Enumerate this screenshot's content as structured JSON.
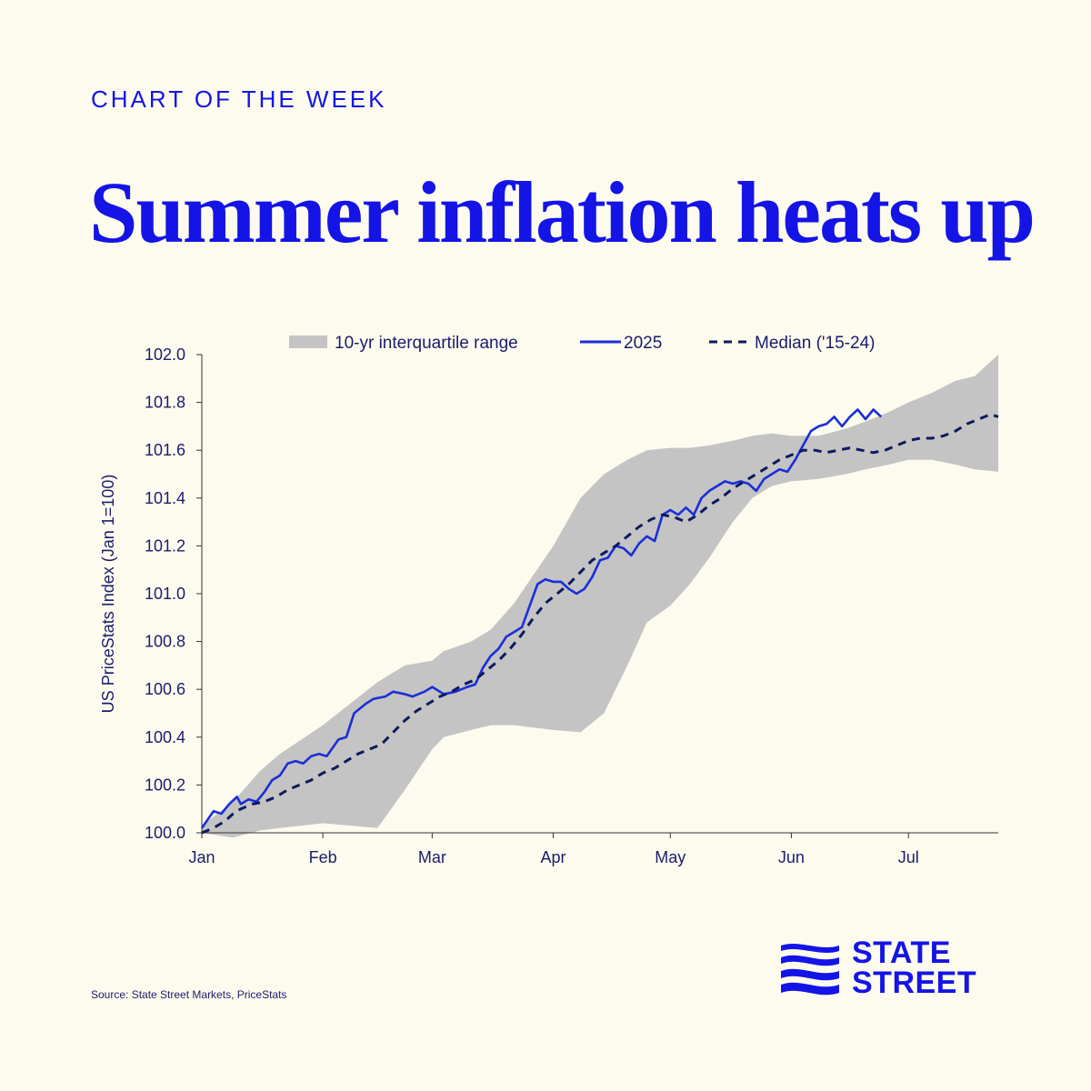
{
  "header": {
    "eyebrow": "CHART OF THE WEEK",
    "title": "Summer inflation heats up"
  },
  "footer": {
    "source": "Source: State Street Markets, PriceStats"
  },
  "brand": {
    "line1": "STATE",
    "line2": "STREET",
    "color": "#1414e6"
  },
  "chart_data": {
    "type": "line",
    "ylabel": "US PriceStats Index (Jan 1=100)",
    "xlabel": "",
    "ylim": [
      100.0,
      102.0
    ],
    "yticks": [
      100.0,
      100.2,
      100.4,
      100.6,
      100.8,
      101.0,
      101.2,
      101.4,
      101.6,
      101.8,
      102.0
    ],
    "ytick_labels": [
      "100.0",
      "100.2",
      "100.4",
      "100.6",
      "100.8",
      "101.0",
      "101.2",
      "101.4",
      "101.6",
      "101.8",
      "102.0"
    ],
    "xlim": [
      0,
      204
    ],
    "month_ticks": [
      {
        "label": "Jan",
        "day": 0
      },
      {
        "label": "Feb",
        "day": 31
      },
      {
        "label": "Mar",
        "day": 59
      },
      {
        "label": "Apr",
        "day": 90
      },
      {
        "label": "May",
        "day": 120
      },
      {
        "label": "Jun",
        "day": 151
      },
      {
        "label": "Jul",
        "day": 181
      }
    ],
    "grid": false,
    "legend_position": "top",
    "band": {
      "name": "10-yr interquartile range",
      "color": "#c4c4c4",
      "x": [
        0,
        8,
        15,
        20,
        31,
        45,
        52,
        59,
        62,
        69,
        74,
        80,
        90,
        97,
        103,
        109,
        114,
        120,
        125,
        130,
        136,
        141,
        146,
        151,
        158,
        165,
        170,
        176,
        181,
        187,
        193,
        198,
        204
      ],
      "upper": [
        100.03,
        100.13,
        100.26,
        100.33,
        100.45,
        100.63,
        100.7,
        100.72,
        100.76,
        100.8,
        100.85,
        100.96,
        101.2,
        101.4,
        101.5,
        101.56,
        101.6,
        101.61,
        101.61,
        101.62,
        101.64,
        101.66,
        101.67,
        101.66,
        101.66,
        101.69,
        101.72,
        101.76,
        101.8,
        101.84,
        101.89,
        101.91,
        102.0
      ],
      "lower": [
        100.0,
        99.98,
        100.01,
        100.02,
        100.04,
        100.02,
        100.18,
        100.35,
        100.4,
        100.43,
        100.45,
        100.45,
        100.43,
        100.42,
        100.5,
        100.7,
        100.88,
        100.95,
        101.04,
        101.15,
        101.3,
        101.4,
        101.45,
        101.47,
        101.48,
        101.5,
        101.52,
        101.54,
        101.56,
        101.56,
        101.54,
        101.52,
        101.51
      ]
    },
    "series": [
      {
        "name": "2025",
        "color": "#1a2ed8",
        "style": "solid",
        "x": [
          0,
          3,
          5,
          7,
          9,
          10,
          12,
          14,
          16,
          18,
          20,
          22,
          24,
          26,
          28,
          30,
          32,
          35,
          37,
          39,
          42,
          44,
          47,
          49,
          52,
          54,
          57,
          59,
          62,
          65,
          68,
          70,
          72,
          74,
          76,
          78,
          80,
          82,
          84,
          86,
          88,
          90,
          92,
          94,
          96,
          98,
          100,
          102,
          104,
          106,
          108,
          110,
          112,
          114,
          116,
          118,
          120,
          122,
          124,
          126,
          128,
          130,
          132,
          134,
          136,
          138,
          140,
          142,
          144,
          146,
          148,
          150,
          152,
          154,
          156,
          157,
          158,
          160,
          162,
          164,
          166,
          168,
          170,
          172,
          174
        ],
        "values": [
          100.02,
          100.09,
          100.08,
          100.12,
          100.15,
          100.12,
          100.14,
          100.13,
          100.17,
          100.22,
          100.24,
          100.29,
          100.3,
          100.29,
          100.32,
          100.33,
          100.32,
          100.39,
          100.4,
          100.5,
          100.54,
          100.56,
          100.57,
          100.59,
          100.58,
          100.57,
          100.59,
          100.61,
          100.58,
          100.59,
          100.61,
          100.62,
          100.69,
          100.74,
          100.77,
          100.82,
          100.84,
          100.86,
          100.95,
          101.04,
          101.06,
          101.05,
          101.05,
          101.02,
          101.0,
          101.02,
          101.07,
          101.14,
          101.15,
          101.2,
          101.19,
          101.16,
          101.21,
          101.24,
          101.22,
          101.33,
          101.35,
          101.33,
          101.36,
          101.33,
          101.4,
          101.43,
          101.45,
          101.47,
          101.46,
          101.47,
          101.46,
          101.43,
          101.48,
          101.5,
          101.52,
          101.51,
          101.56,
          101.62,
          101.68,
          101.69,
          101.7,
          101.71,
          101.74,
          101.7,
          101.74,
          101.77,
          101.73,
          101.77,
          101.74
        ]
      },
      {
        "name": "Median ('15-24)",
        "color": "#0d1a5e",
        "style": "dashed",
        "x": [
          0,
          3,
          6,
          8,
          10,
          13,
          16,
          19,
          22,
          25,
          28,
          31,
          34,
          37,
          40,
          43,
          46,
          49,
          52,
          55,
          58,
          61,
          64,
          67,
          70,
          73,
          76,
          79,
          82,
          85,
          88,
          91,
          94,
          97,
          100,
          103,
          106,
          109,
          112,
          115,
          118,
          121,
          124,
          127,
          130,
          133,
          136,
          139,
          142,
          145,
          148,
          151,
          154,
          157,
          160,
          163,
          166,
          169,
          172,
          175,
          178,
          181,
          184,
          187,
          190,
          193,
          196,
          199,
          202,
          204
        ],
        "values": [
          100.0,
          100.02,
          100.05,
          100.08,
          100.1,
          100.12,
          100.13,
          100.15,
          100.18,
          100.2,
          100.22,
          100.25,
          100.27,
          100.3,
          100.33,
          100.35,
          100.37,
          100.42,
          100.47,
          100.51,
          100.54,
          100.57,
          100.59,
          100.62,
          100.64,
          100.68,
          100.72,
          100.77,
          100.83,
          100.9,
          100.96,
          101.0,
          101.04,
          101.09,
          101.14,
          101.17,
          101.2,
          101.24,
          101.28,
          101.31,
          101.33,
          101.32,
          101.3,
          101.33,
          101.37,
          101.4,
          101.44,
          101.47,
          101.5,
          101.53,
          101.56,
          101.58,
          101.6,
          101.6,
          101.59,
          101.6,
          101.61,
          101.6,
          101.59,
          101.6,
          101.62,
          101.64,
          101.65,
          101.65,
          101.66,
          101.68,
          101.71,
          101.73,
          101.75,
          101.74
        ]
      }
    ]
  }
}
